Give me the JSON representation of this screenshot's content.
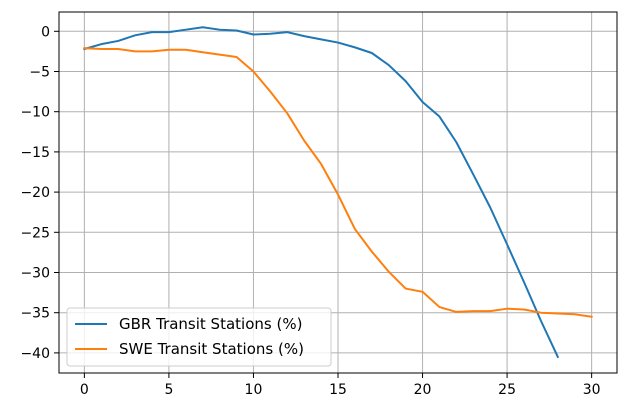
{
  "chart_data": {
    "type": "line",
    "title": "",
    "xlabel": "",
    "ylabel": "",
    "xlim": [
      -1.5,
      31.5
    ],
    "ylim": [
      -42.5,
      2.4
    ],
    "xticks": [
      0,
      5,
      10,
      15,
      20,
      25,
      30
    ],
    "yticks": [
      0,
      -5,
      -10,
      -15,
      -20,
      -25,
      -30,
      -35,
      -40
    ],
    "grid": true,
    "legend_position": "lower-left",
    "series": [
      {
        "name": "GBR Transit Stations (%)",
        "color": "#1f77b4",
        "x": [
          0,
          1,
          2,
          3,
          4,
          5,
          6,
          7,
          8,
          9,
          10,
          11,
          12,
          13,
          14,
          15,
          16,
          17,
          18,
          19,
          20,
          21,
          22,
          23,
          24,
          25,
          26,
          27,
          28
        ],
        "y": [
          -2.2,
          -1.6,
          -1.2,
          -0.5,
          -0.1,
          -0.1,
          0.2,
          0.5,
          0.2,
          0.1,
          -0.4,
          -0.3,
          -0.1,
          -0.6,
          -1.0,
          -1.4,
          -2.0,
          -2.7,
          -4.2,
          -6.2,
          -8.8,
          -10.6,
          -13.8,
          -17.8,
          -21.9,
          -26.5,
          -31.2,
          -36.0,
          -40.5
        ]
      },
      {
        "name": "SWE Transit Stations (%)",
        "color": "#ff7f0e",
        "x": [
          0,
          1,
          2,
          3,
          4,
          5,
          6,
          7,
          8,
          9,
          10,
          11,
          12,
          13,
          14,
          15,
          16,
          17,
          18,
          19,
          20,
          21,
          22,
          23,
          24,
          25,
          26,
          27,
          28,
          29,
          30
        ],
        "y": [
          -2.1,
          -2.2,
          -2.2,
          -2.5,
          -2.5,
          -2.3,
          -2.3,
          -2.6,
          -2.9,
          -3.2,
          -5.0,
          -7.5,
          -10.2,
          -13.6,
          -16.5,
          -20.3,
          -24.6,
          -27.4,
          -29.9,
          -32.0,
          -32.4,
          -34.3,
          -34.9,
          -34.8,
          -34.8,
          -34.5,
          -34.6,
          -35.0,
          -35.1,
          -35.2,
          -35.5
        ]
      }
    ]
  }
}
